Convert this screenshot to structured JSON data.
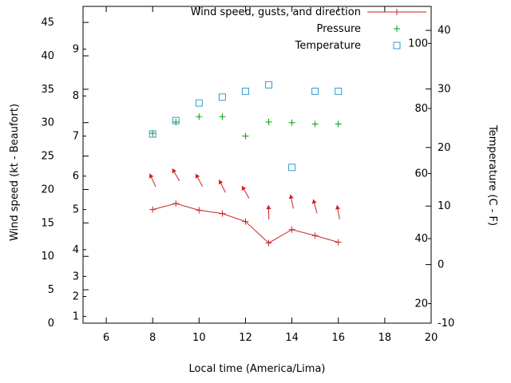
{
  "background_color": "#ffffff",
  "chart_data": {
    "type": "line",
    "title": "",
    "xlabel": "Local time (America/Lima)",
    "ylabel_left": "Wind speed (kt - Beaufort)",
    "ylabel_right": "Temperature (C - F)",
    "legend_position": "top-right-inside",
    "grid": false,
    "x_axis": {
      "min": 5,
      "max": 20,
      "tick_labels": [
        6,
        8,
        10,
        12,
        14,
        16,
        18,
        20
      ]
    },
    "y_left_axis": {
      "min": 0,
      "max": 47.4,
      "tick_labels": [
        0,
        5,
        10,
        15,
        20,
        25,
        30,
        35,
        40,
        45
      ]
    },
    "y_left_secondary": {
      "name": "Beaufort",
      "tick_labels": [
        "1",
        "2",
        "3",
        "4",
        "5",
        "6",
        "7",
        "8",
        "9"
      ],
      "positions_kt": [
        1,
        4,
        7,
        11,
        17,
        22,
        28,
        34,
        41
      ]
    },
    "y_right_axis": {
      "min": -10,
      "max": 44.1,
      "tick_labels": [
        -10,
        0,
        10,
        20,
        30,
        40
      ]
    },
    "y_right_secondary": {
      "name": "Fahrenheit",
      "tick_labels": [
        "20",
        "40",
        "60",
        "80",
        "100"
      ],
      "positions_c": [
        -6.67,
        4.44,
        15.56,
        26.67,
        37.78
      ]
    },
    "series": [
      {
        "name": "Wind speed, gusts, and direction",
        "color": "#cc2222",
        "marker": "plus",
        "line": true,
        "axis": "left",
        "x": [
          8,
          9,
          10,
          11,
          12,
          13,
          14,
          15,
          16
        ],
        "wind_speed_kt": [
          17.0,
          17.9,
          16.9,
          16.4,
          15.2,
          12.0,
          14.0,
          13.1,
          12.1
        ],
        "gust_kt": [
          21.4,
          22.2,
          21.4,
          20.5,
          19.6,
          16.6,
          18.2,
          17.5,
          16.6
        ],
        "direction_deg": [
          335,
          330,
          332,
          333,
          330,
          358,
          348,
          345,
          350
        ]
      },
      {
        "name": "Pressure",
        "color": "#00a000",
        "marker": "plus",
        "line": false,
        "axis": "left",
        "x": [
          8,
          9,
          10,
          11,
          12,
          13,
          14,
          15,
          16
        ],
        "values": [
          28.4,
          30.1,
          30.9,
          30.9,
          28.0,
          30.1,
          30.0,
          29.8,
          29.8
        ]
      },
      {
        "name": "Temperature",
        "color": "#3399cc",
        "marker": "open-square",
        "line": false,
        "axis": "right",
        "x": [
          8,
          9,
          10,
          11,
          12,
          13,
          14,
          15,
          16
        ],
        "values_c": [
          22.3,
          24.6,
          27.6,
          28.6,
          29.6,
          30.7,
          16.6,
          29.6,
          29.6
        ]
      }
    ]
  }
}
